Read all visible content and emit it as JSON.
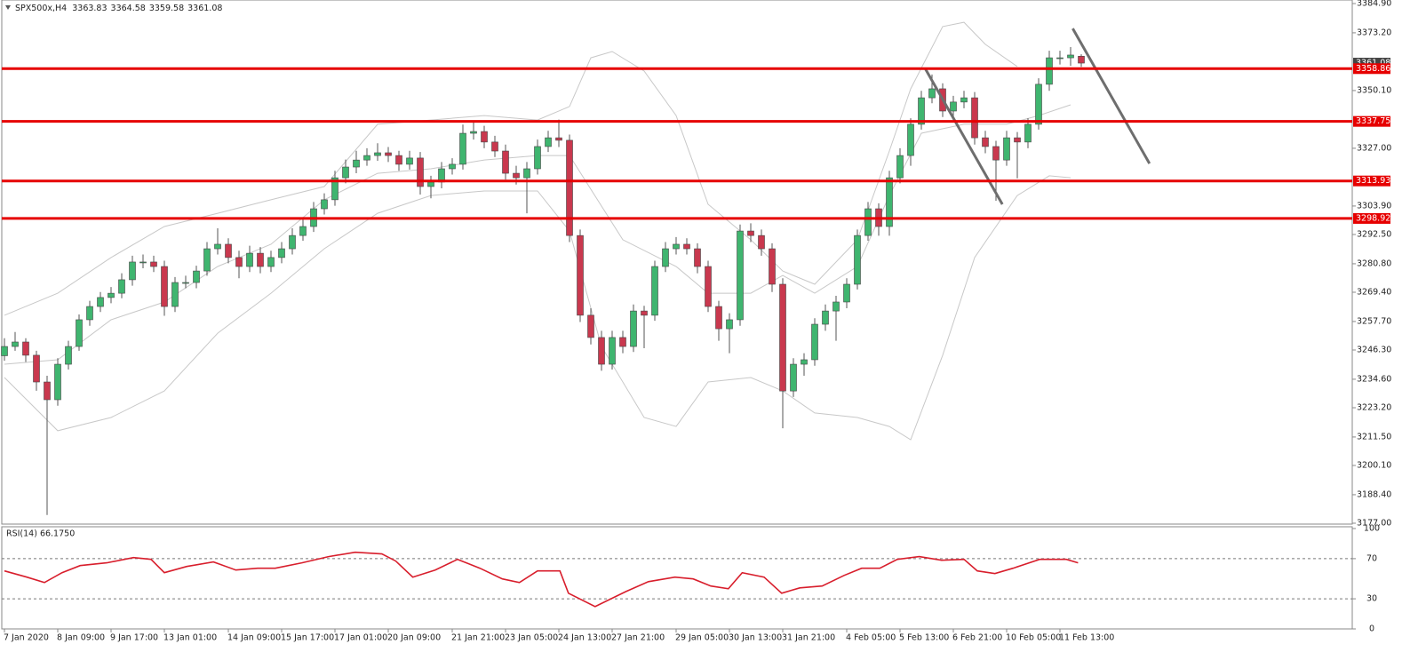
{
  "chart_data": {
    "type": "candlestick",
    "title": "SPX500x,H4",
    "ylim": [
      3177.0,
      3384.9
    ],
    "yticks": [
      {
        "value": 3384.9,
        "label": "3384.90"
      },
      {
        "value": 3373.2,
        "label": "3373.20"
      },
      {
        "value": 3350.1,
        "label": "3350.10"
      },
      {
        "value": 3327.0,
        "label": "3327.00"
      },
      {
        "value": 3303.9,
        "label": "3303.90"
      },
      {
        "value": 3292.5,
        "label": "3292.50"
      },
      {
        "value": 3280.8,
        "label": "3280.80"
      },
      {
        "value": 3269.4,
        "label": "3269.40"
      },
      {
        "value": 3257.7,
        "label": "3257.70"
      },
      {
        "value": 3246.3,
        "label": "3246.30"
      },
      {
        "value": 3234.6,
        "label": "3234.60"
      },
      {
        "value": 3223.2,
        "label": "3223.20"
      },
      {
        "value": 3211.5,
        "label": "3211.50"
      },
      {
        "value": 3200.1,
        "label": "3200.10"
      },
      {
        "value": 3188.4,
        "label": "3188.40"
      },
      {
        "value": 3177.0,
        "label": "3177.00"
      }
    ],
    "categories": [
      "7 Jan 2020",
      null,
      null,
      null,
      null,
      "8 Jan 09:00",
      null,
      null,
      null,
      null,
      "9 Jan 17:00",
      null,
      null,
      null,
      null,
      "13 Jan 01:00",
      null,
      null,
      null,
      null,
      null,
      "14 Jan 09:00",
      null,
      null,
      null,
      null,
      "15 Jan 17:00",
      null,
      null,
      null,
      null,
      "17 Jan 01:00",
      null,
      null,
      null,
      null,
      "20 Jan 09:00",
      null,
      null,
      null,
      null,
      null,
      "21 Jan 21:00",
      null,
      null,
      null,
      null,
      "23 Jan 05:00",
      null,
      null,
      null,
      null,
      "24 Jan 13:00",
      null,
      null,
      null,
      null,
      "27 Jan 21:00",
      null,
      null,
      null,
      null,
      null,
      "29 Jan 05:00",
      null,
      null,
      null,
      null,
      "30 Jan 13:00",
      null,
      null,
      null,
      null,
      "31 Jan 21:00",
      null,
      null,
      null,
      null,
      null,
      "4 Feb 05:00",
      null,
      null,
      null,
      null,
      "5 Feb 13:00",
      null,
      null,
      null,
      null,
      "6 Feb 21:00",
      null,
      null,
      null,
      null,
      "10 Feb 05:00",
      null,
      null,
      null,
      null,
      "11 Feb 13:00",
      null,
      null
    ],
    "bull_color": "#3fb56f",
    "bear_color": "#c9384e",
    "ohlc": [
      [
        3244.0,
        3251.0,
        3242.0,
        3247.7
      ],
      [
        3247.7,
        3253.5,
        3246.0,
        3249.5
      ],
      [
        3249.5,
        3251.0,
        3241.5,
        3244.2
      ],
      [
        3244.2,
        3246.0,
        3230.0,
        3233.5
      ],
      [
        3233.5,
        3236.0,
        3180.3,
        3226.4
      ],
      [
        3226.4,
        3243.0,
        3224.0,
        3240.6
      ],
      [
        3240.6,
        3250.0,
        3238.5,
        3247.7
      ],
      [
        3247.7,
        3260.5,
        3246.0,
        3258.4
      ],
      [
        3258.4,
        3266.0,
        3256.0,
        3263.7
      ],
      [
        3263.7,
        3269.5,
        3261.5,
        3267.3
      ],
      [
        3267.3,
        3271.5,
        3265.0,
        3269.0
      ],
      [
        3269.0,
        3277.0,
        3267.0,
        3274.4
      ],
      [
        3274.4,
        3284.0,
        3272.0,
        3281.5
      ],
      [
        3281.5,
        3284.5,
        3279.0,
        3281.5
      ],
      [
        3281.5,
        3284.0,
        3277.5,
        3279.7
      ],
      [
        3279.7,
        3282.0,
        3260.0,
        3263.7
      ],
      [
        3263.7,
        3275.5,
        3261.5,
        3273.3
      ],
      [
        3273.3,
        3276.0,
        3271.0,
        3273.3
      ],
      [
        3273.3,
        3280.0,
        3271.0,
        3277.9
      ],
      [
        3277.9,
        3289.5,
        3276.0,
        3286.8
      ],
      [
        3286.8,
        3295.0,
        3284.5,
        3288.6
      ],
      [
        3288.6,
        3291.0,
        3281.0,
        3283.3
      ],
      [
        3283.3,
        3286.0,
        3275.0,
        3279.7
      ],
      [
        3279.7,
        3288.0,
        3277.5,
        3285.0
      ],
      [
        3285.0,
        3287.5,
        3277.0,
        3279.7
      ],
      [
        3279.7,
        3286.0,
        3277.5,
        3283.3
      ],
      [
        3283.3,
        3289.5,
        3281.0,
        3286.8
      ],
      [
        3286.8,
        3295.0,
        3284.5,
        3292.1
      ],
      [
        3292.1,
        3298.5,
        3290.0,
        3295.7
      ],
      [
        3295.7,
        3305.5,
        3293.5,
        3302.8
      ],
      [
        3302.8,
        3309.0,
        3300.5,
        3306.4
      ],
      [
        3306.4,
        3318.0,
        3304.0,
        3315.2
      ],
      [
        3315.2,
        3322.5,
        3313.0,
        3319.5
      ],
      [
        3319.5,
        3326.0,
        3317.0,
        3322.3
      ],
      [
        3322.3,
        3327.0,
        3320.0,
        3324.1
      ],
      [
        3324.1,
        3329.0,
        3322.0,
        3325.2
      ],
      [
        3325.2,
        3327.5,
        3321.5,
        3324.1
      ],
      [
        3324.1,
        3326.0,
        3318.0,
        3320.6
      ],
      [
        3320.6,
        3326.0,
        3318.5,
        3323.1
      ],
      [
        3323.1,
        3325.5,
        3308.5,
        3311.7
      ],
      [
        3311.7,
        3316.0,
        3307.0,
        3313.5
      ],
      [
        3313.5,
        3321.5,
        3311.0,
        3318.8
      ],
      [
        3318.8,
        3323.0,
        3316.5,
        3320.6
      ],
      [
        3320.6,
        3336.5,
        3318.5,
        3333.0
      ],
      [
        3333.0,
        3337.5,
        3330.5,
        3333.7
      ],
      [
        3333.7,
        3336.0,
        3327.0,
        3329.5
      ],
      [
        3329.5,
        3332.0,
        3323.5,
        3325.9
      ],
      [
        3325.9,
        3328.5,
        3314.5,
        3317.0
      ],
      [
        3317.0,
        3320.0,
        3312.5,
        3315.2
      ],
      [
        3315.2,
        3321.5,
        3301.0,
        3318.8
      ],
      [
        3318.8,
        3330.5,
        3316.5,
        3327.7
      ],
      [
        3327.7,
        3334.0,
        3325.5,
        3331.2
      ],
      [
        3331.2,
        3338.5,
        3327.5,
        3330.2
      ],
      [
        3330.2,
        3332.5,
        3289.5,
        3292.1
      ],
      [
        3292.1,
        3294.5,
        3257.5,
        3260.2
      ],
      [
        3260.2,
        3263.0,
        3248.5,
        3251.3
      ],
      [
        3251.3,
        3254.0,
        3238.0,
        3240.6
      ],
      [
        3240.6,
        3254.0,
        3238.5,
        3251.3
      ],
      [
        3251.3,
        3254.0,
        3245.0,
        3247.7
      ],
      [
        3247.7,
        3264.5,
        3245.5,
        3261.9
      ],
      [
        3261.9,
        3264.0,
        3247.0,
        3260.2
      ],
      [
        3260.2,
        3282.0,
        3258.0,
        3279.7
      ],
      [
        3279.7,
        3289.5,
        3277.5,
        3286.8
      ],
      [
        3286.8,
        3291.5,
        3284.5,
        3288.6
      ],
      [
        3288.6,
        3291.0,
        3284.5,
        3286.8
      ],
      [
        3286.8,
        3289.0,
        3277.0,
        3279.7
      ],
      [
        3279.7,
        3282.0,
        3261.5,
        3263.7
      ],
      [
        3263.7,
        3266.0,
        3250.0,
        3254.8
      ],
      [
        3254.8,
        3261.0,
        3245.0,
        3258.4
      ],
      [
        3258.4,
        3296.5,
        3256.0,
        3293.9
      ],
      [
        3293.9,
        3297.0,
        3289.5,
        3292.1
      ],
      [
        3292.1,
        3294.5,
        3284.0,
        3286.8
      ],
      [
        3286.8,
        3289.0,
        3269.5,
        3272.6
      ],
      [
        3272.6,
        3275.0,
        3215.0,
        3229.9
      ],
      [
        3229.9,
        3243.0,
        3227.5,
        3240.6
      ],
      [
        3240.6,
        3245.0,
        3236.0,
        3242.4
      ],
      [
        3242.4,
        3259.0,
        3240.0,
        3256.6
      ],
      [
        3256.6,
        3264.5,
        3254.0,
        3261.9
      ],
      [
        3261.9,
        3268.0,
        3250.0,
        3265.5
      ],
      [
        3265.5,
        3275.0,
        3263.0,
        3272.6
      ],
      [
        3272.6,
        3294.5,
        3270.5,
        3292.1
      ],
      [
        3292.1,
        3305.5,
        3290.0,
        3302.8
      ],
      [
        3302.8,
        3305.0,
        3292.0,
        3295.7
      ],
      [
        3295.7,
        3318.0,
        3292.0,
        3315.2
      ],
      [
        3315.2,
        3327.0,
        3313.0,
        3324.1
      ],
      [
        3324.1,
        3339.0,
        3320.0,
        3336.6
      ],
      [
        3336.6,
        3350.0,
        3334.5,
        3347.2
      ],
      [
        3347.2,
        3356.5,
        3345.0,
        3350.8
      ],
      [
        3350.8,
        3353.0,
        3339.5,
        3341.9
      ],
      [
        3341.9,
        3348.0,
        3339.5,
        3345.5
      ],
      [
        3345.5,
        3350.0,
        3343.0,
        3347.2
      ],
      [
        3347.2,
        3349.5,
        3328.5,
        3331.2
      ],
      [
        3331.2,
        3334.0,
        3325.0,
        3327.7
      ],
      [
        3327.7,
        3330.0,
        3306.0,
        3322.3
      ],
      [
        3322.3,
        3334.0,
        3320.0,
        3331.2
      ],
      [
        3331.2,
        3333.5,
        3315.0,
        3329.5
      ],
      [
        3329.5,
        3339.0,
        3327.0,
        3336.6
      ],
      [
        3336.6,
        3355.0,
        3334.5,
        3352.6
      ],
      [
        3352.6,
        3366.0,
        3350.0,
        3363.2
      ],
      [
        3363.2,
        3366.0,
        3360.5,
        3363.2
      ],
      [
        3363.2,
        3367.5,
        3360.0,
        3364.3
      ],
      [
        3363.83,
        3364.58,
        3359.58,
        3361.08
      ]
    ],
    "band_color": "#c8c8c8",
    "bands": [
      {
        "x": [
          0,
          5,
          10,
          15,
          20,
          25,
          30,
          35,
          40,
          45,
          50,
          53,
          55,
          57,
          60,
          63,
          66,
          70,
          73,
          76,
          80,
          83,
          85,
          88,
          90,
          92,
          95
        ],
        "values": [
          3260.2,
          3269.0,
          3283.3,
          3295.7,
          3301.0,
          3306.4,
          3311.7,
          3336.6,
          3338.3,
          3340.1,
          3338.3,
          3343.7,
          3363.2,
          3365.7,
          3357.9,
          3340.1,
          3304.6,
          3290.4,
          3277.9,
          3272.6,
          3290.4,
          3325.9,
          3350.8,
          3375.7,
          3377.4,
          3368.6,
          3359.7
        ]
      },
      {
        "x": [
          0,
          5,
          10,
          15,
          20,
          25,
          30,
          35,
          40,
          45,
          50,
          53,
          58,
          63,
          66,
          70,
          73,
          76,
          80,
          83,
          86,
          90,
          94,
          97,
          100
        ],
        "values": [
          3240.6,
          3242.4,
          3258.4,
          3265.5,
          3279.7,
          3288.6,
          3306.4,
          3317.0,
          3318.8,
          3322.3,
          3324.1,
          3324.1,
          3290.4,
          3279.7,
          3269.0,
          3269.0,
          3276.1,
          3269.0,
          3279.7,
          3308.1,
          3333.0,
          3336.6,
          3336.6,
          3340.1,
          3344.4
        ]
      },
      {
        "x": [
          0,
          5,
          10,
          15,
          20,
          25,
          30,
          35,
          40,
          45,
          50,
          53,
          56,
          60,
          63,
          66,
          70,
          73,
          76,
          80,
          83,
          85,
          88,
          91,
          95,
          98,
          100
        ],
        "values": [
          3235.3,
          3214.0,
          3219.3,
          3229.9,
          3253.0,
          3269.0,
          3286.8,
          3301.0,
          3308.1,
          3309.9,
          3309.9,
          3293.9,
          3247.7,
          3219.3,
          3215.7,
          3233.5,
          3235.3,
          3229.9,
          3221.1,
          3219.3,
          3215.7,
          3210.4,
          3244.2,
          3283.3,
          3308.1,
          3316.0,
          3315.2
        ]
      }
    ],
    "level_color": "#e60000",
    "levels": [
      3358.86,
      3337.75,
      3313.93,
      3298.92
    ],
    "trend_color": "#6e6e6e",
    "trendlines": [
      {
        "x": [
          86.4,
          93.6
        ],
        "values": [
          3358.6,
          3304.6
        ]
      },
      {
        "x": [
          100.2,
          107.4
        ],
        "values": [
          3374.9,
          3320.9
        ]
      }
    ],
    "rsi": {
      "title": "RSI(14) 66.1750",
      "color": "#d81e2c",
      "ylim": [
        0,
        100
      ],
      "yticks": [
        100,
        70,
        30,
        0
      ],
      "levels": [
        70,
        30
      ],
      "x": [
        0,
        2.1,
        3.75,
        5.4,
        7.1,
        9.6,
        12.1,
        13.75,
        15,
        17.1,
        19.6,
        21.7,
        23.75,
        25.4,
        27.9,
        30.4,
        32.9,
        35.4,
        36.7,
        38.3,
        40.4,
        42.5,
        44.6,
        46.7,
        48.3,
        50,
        52.1,
        52.9,
        55.4,
        57.1,
        58.3,
        60.4,
        62.9,
        64.6,
        66.25,
        67.9,
        69.2,
        71.25,
        72.9,
        74.6,
        76.7,
        78.75,
        80.4,
        82.1,
        83.75,
        85.8,
        87.9,
        90,
        91.25,
        92.9,
        94.6,
        97.1,
        99.6,
        100.7
      ],
      "values": [
        57.8,
        51.6,
        46.2,
        56.0,
        63.1,
        65.8,
        71.1,
        69.3,
        56.0,
        62.2,
        66.7,
        58.7,
        60.4,
        60.4,
        65.8,
        72.0,
        76.4,
        74.7,
        67.6,
        51.6,
        58.7,
        69.3,
        60.4,
        49.8,
        46.2,
        57.8,
        57.8,
        35.6,
        22.2,
        31.1,
        37.3,
        47.1,
        51.6,
        49.8,
        42.7,
        40.0,
        56.0,
        51.6,
        35.6,
        40.9,
        42.7,
        53.3,
        60.4,
        60.4,
        69.3,
        72.0,
        68.4,
        69.3,
        57.8,
        55.1,
        60.4,
        69.3,
        69.3,
        65.8
      ]
    }
  }
}
